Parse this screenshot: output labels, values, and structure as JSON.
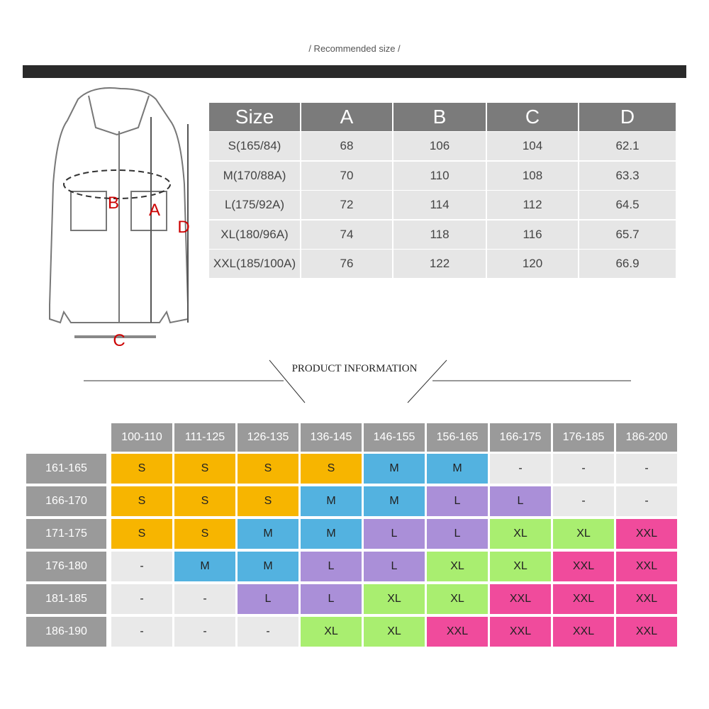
{
  "header": {
    "title": "/ Recommended size /"
  },
  "diagram": {
    "labels": [
      "A",
      "B",
      "C",
      "D"
    ]
  },
  "size_table": {
    "columns": [
      "Size",
      "A",
      "B",
      "C",
      "D"
    ],
    "rows": [
      [
        "S(165/84)",
        "68",
        "106",
        "104",
        "62.1"
      ],
      [
        "M(170/88A)",
        "70",
        "110",
        "108",
        "63.3"
      ],
      [
        "L(175/92A)",
        "72",
        "114",
        "112",
        "64.5"
      ],
      [
        "XL(180/96A)",
        "74",
        "118",
        "116",
        "65.7"
      ],
      [
        "XXL(185/100A)",
        "76",
        "122",
        "120",
        "66.9"
      ]
    ]
  },
  "product_info": {
    "title": "PRODUCT INFORMATION",
    "columns": [
      "100-110",
      "111-125",
      "126-135",
      "136-145",
      "146-155",
      "156-165",
      "166-175",
      "176-185",
      "186-200"
    ],
    "rows": [
      "161-165",
      "166-170",
      "171-175",
      "176-180",
      "181-185",
      "186-190"
    ],
    "cells": [
      [
        {
          "text": "S",
          "color": "#f7b500"
        },
        {
          "text": "S",
          "color": "#f7b500"
        },
        {
          "text": "S",
          "color": "#f7b500"
        },
        {
          "text": "S",
          "color": "#f7b500"
        },
        {
          "text": "M",
          "color": "#53b2e0"
        },
        {
          "text": "M",
          "color": "#53b2e0"
        },
        {
          "text": "-",
          "color": "#e9e9e9"
        },
        {
          "text": "-",
          "color": "#e9e9e9"
        },
        {
          "text": "-",
          "color": "#e9e9e9"
        }
      ],
      [
        {
          "text": "S",
          "color": "#f7b500"
        },
        {
          "text": "S",
          "color": "#f7b500"
        },
        {
          "text": "S",
          "color": "#f7b500"
        },
        {
          "text": "M",
          "color": "#53b2e0"
        },
        {
          "text": "M",
          "color": "#53b2e0"
        },
        {
          "text": "L",
          "color": "#aa8fd8"
        },
        {
          "text": "L",
          "color": "#aa8fd8"
        },
        {
          "text": "-",
          "color": "#e9e9e9"
        },
        {
          "text": "-",
          "color": "#e9e9e9"
        }
      ],
      [
        {
          "text": "S",
          "color": "#f7b500"
        },
        {
          "text": "S",
          "color": "#f7b500"
        },
        {
          "text": "M",
          "color": "#53b2e0"
        },
        {
          "text": "M",
          "color": "#53b2e0"
        },
        {
          "text": "L",
          "color": "#aa8fd8"
        },
        {
          "text": "L",
          "color": "#aa8fd8"
        },
        {
          "text": "XL",
          "color": "#a9ee70"
        },
        {
          "text": "XL",
          "color": "#a9ee70"
        },
        {
          "text": "XXL",
          "color": "#f04b9c"
        }
      ],
      [
        {
          "text": "-",
          "color": "#e9e9e9"
        },
        {
          "text": "M",
          "color": "#53b2e0"
        },
        {
          "text": "M",
          "color": "#53b2e0"
        },
        {
          "text": "L",
          "color": "#aa8fd8"
        },
        {
          "text": "L",
          "color": "#aa8fd8"
        },
        {
          "text": "XL",
          "color": "#a9ee70"
        },
        {
          "text": "XL",
          "color": "#a9ee70"
        },
        {
          "text": "XXL",
          "color": "#f04b9c"
        },
        {
          "text": "XXL",
          "color": "#f04b9c"
        }
      ],
      [
        {
          "text": "-",
          "color": "#e9e9e9"
        },
        {
          "text": "-",
          "color": "#e9e9e9"
        },
        {
          "text": "L",
          "color": "#aa8fd8"
        },
        {
          "text": "L",
          "color": "#aa8fd8"
        },
        {
          "text": "XL",
          "color": "#a9ee70"
        },
        {
          "text": "XL",
          "color": "#a9ee70"
        },
        {
          "text": "XXL",
          "color": "#f04b9c"
        },
        {
          "text": "XXL",
          "color": "#f04b9c"
        },
        {
          "text": "XXL",
          "color": "#f04b9c"
        }
      ],
      [
        {
          "text": "-",
          "color": "#e9e9e9"
        },
        {
          "text": "-",
          "color": "#e9e9e9"
        },
        {
          "text": "-",
          "color": "#e9e9e9"
        },
        {
          "text": "XL",
          "color": "#a9ee70"
        },
        {
          "text": "XL",
          "color": "#a9ee70"
        },
        {
          "text": "XXL",
          "color": "#f04b9c"
        },
        {
          "text": "XXL",
          "color": "#f04b9c"
        },
        {
          "text": "XXL",
          "color": "#f04b9c"
        },
        {
          "text": "XXL",
          "color": "#f04b9c"
        }
      ]
    ]
  }
}
